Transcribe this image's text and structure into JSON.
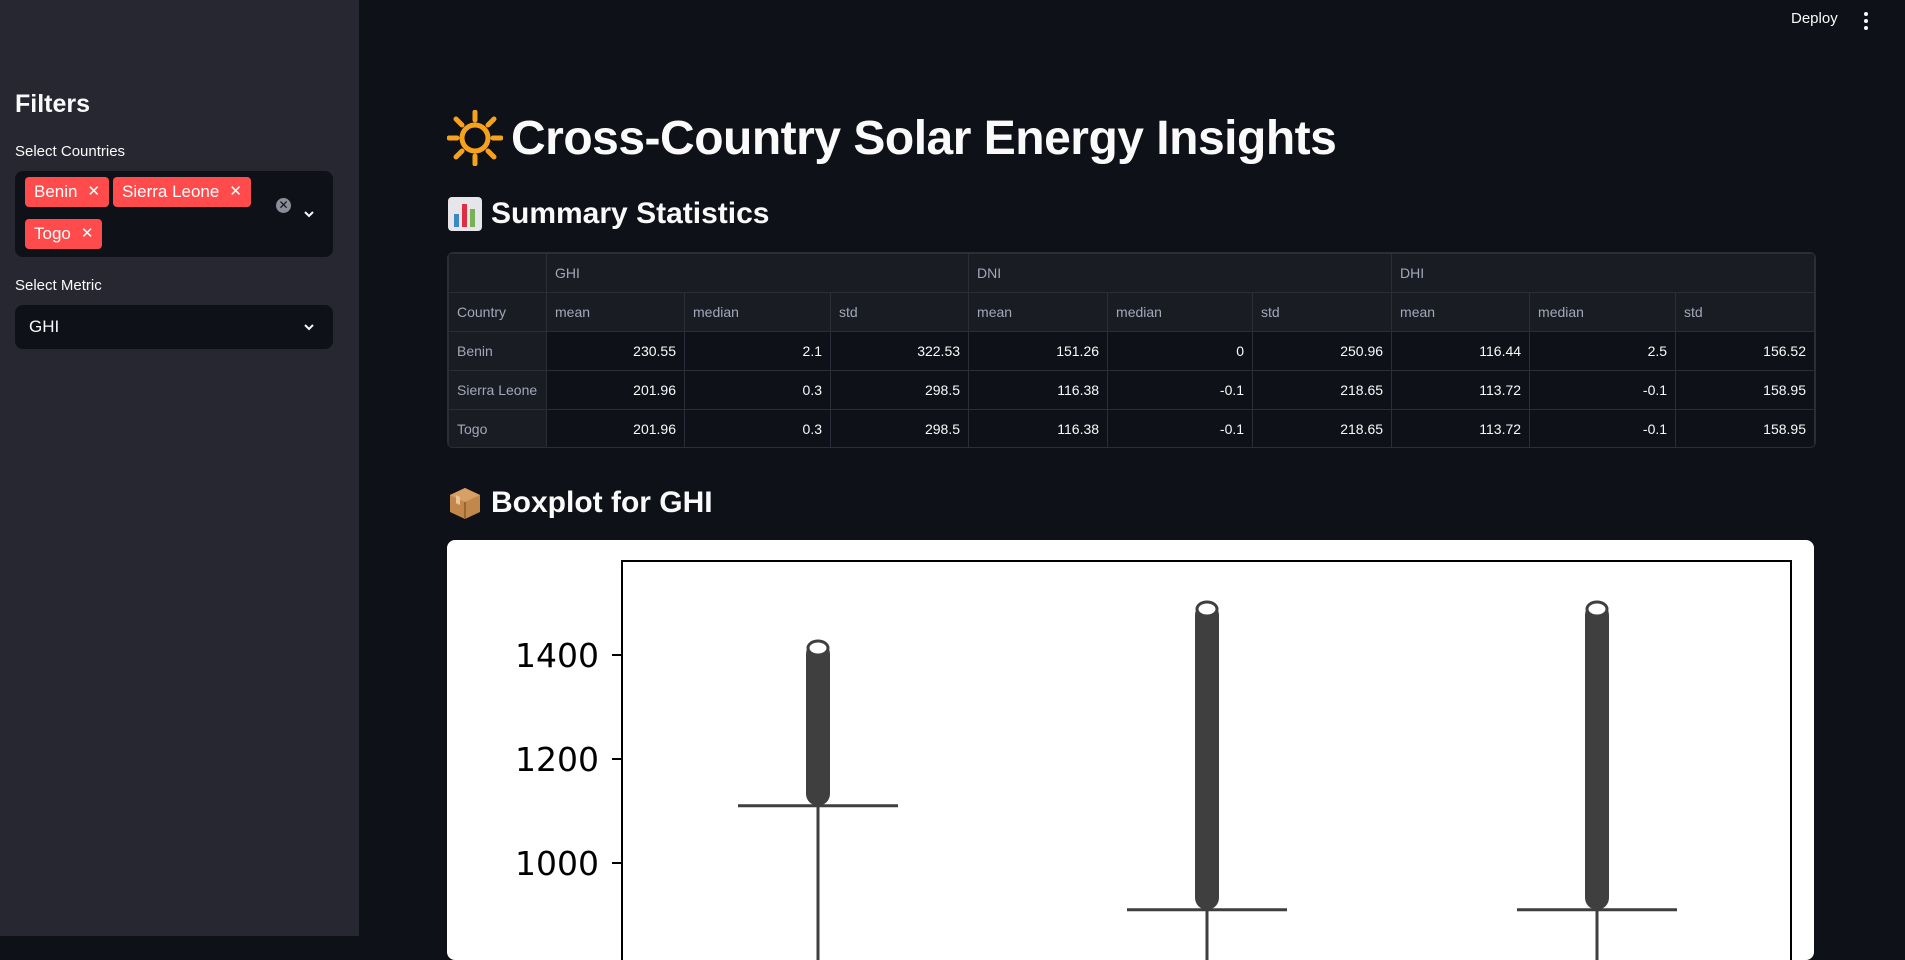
{
  "sidebar": {
    "title": "Filters",
    "countries_label": "Select Countries",
    "countries_selected": [
      "Benin",
      "Sierra Leone",
      "Togo"
    ],
    "metric_label": "Select Metric",
    "metric_value": "GHI"
  },
  "header": {
    "deploy_label": "Deploy"
  },
  "main": {
    "title": "Cross-Country Solar Energy Insights",
    "summary_heading": "Summary Statistics",
    "boxplot_heading": "Boxplot for GHI"
  },
  "table": {
    "groups": [
      "GHI",
      "DNI",
      "DHI"
    ],
    "index_label": "Country",
    "stats": [
      "mean",
      "median",
      "std",
      "mean",
      "median",
      "std",
      "mean",
      "median",
      "std"
    ],
    "rows": [
      {
        "country": "Benin",
        "values": [
          "230.55",
          "2.1",
          "322.53",
          "151.26",
          "0",
          "250.96",
          "116.44",
          "2.5",
          "156.52"
        ]
      },
      {
        "country": "Sierra Leone",
        "values": [
          "201.96",
          "0.3",
          "298.5",
          "116.38",
          "-0.1",
          "218.65",
          "113.72",
          "-0.1",
          "158.95"
        ]
      },
      {
        "country": "Togo",
        "values": [
          "201.96",
          "0.3",
          "298.5",
          "116.38",
          "-0.1",
          "218.65",
          "113.72",
          "-0.1",
          "158.95"
        ]
      }
    ]
  },
  "chart_data": {
    "type": "boxplot",
    "title": "",
    "ylabel": "",
    "yticks": [
      "1000",
      "1200",
      "1400"
    ],
    "ylim": [
      885,
      1560
    ],
    "boxes": [
      {
        "whisker_high": 1110,
        "outlier_max": 1425
      },
      {
        "whisker_high": 910,
        "outlier_max": 1500
      },
      {
        "whisker_high": 910,
        "outlier_max": 1500
      }
    ]
  }
}
